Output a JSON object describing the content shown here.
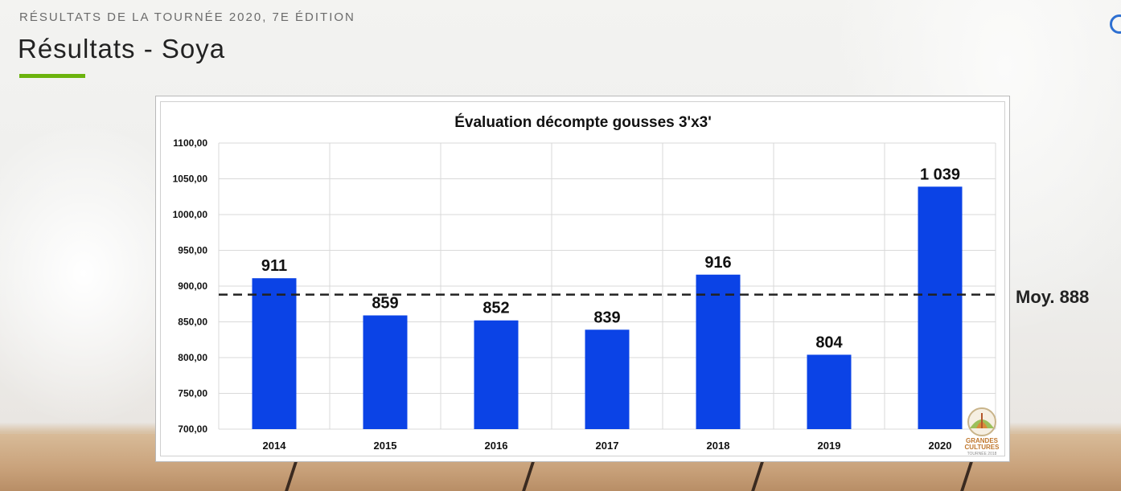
{
  "header": {
    "eyebrow": "RÉSULTATS DE LA TOURNÉE 2020, 7E ÉDITION",
    "title": "Résultats - Soya"
  },
  "colors": {
    "accent": "#6bb30d",
    "bar": "#0b43e6"
  },
  "chart_data": {
    "type": "bar",
    "title": "Évaluation décompte gousses 3'x3'",
    "categories": [
      "2014",
      "2015",
      "2016",
      "2017",
      "2018",
      "2019",
      "2020"
    ],
    "values": [
      911,
      859,
      852,
      839,
      916,
      804,
      1039
    ],
    "value_labels": [
      "911",
      "859",
      "852",
      "839",
      "916",
      "804",
      "1 039"
    ],
    "ylim": [
      700,
      1100
    ],
    "yticks": [
      700,
      750,
      800,
      850,
      900,
      950,
      1000,
      1050,
      1100
    ],
    "ytick_labels": [
      "700,00",
      "750,00",
      "800,00",
      "850,00",
      "900,00",
      "950,00",
      "1000,00",
      "1050,00",
      "1100,00"
    ],
    "average": {
      "value": 888,
      "label": "Moy. 888"
    },
    "grid": true,
    "xlabel": "",
    "ylabel": ""
  },
  "logo": {
    "line1": "GRANDES",
    "line2": "CULTURES",
    "line3": "TOURNÉE 2018"
  }
}
